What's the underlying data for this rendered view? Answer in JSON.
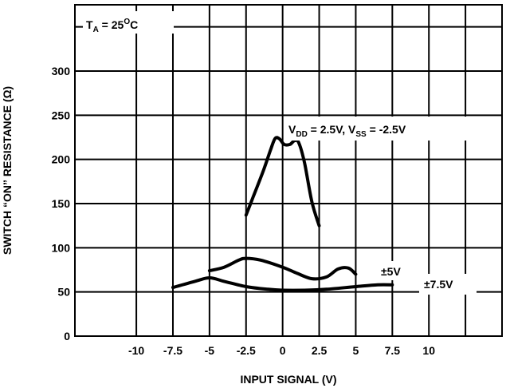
{
  "chart_data": {
    "type": "line",
    "title": "",
    "xlabel": "INPUT SIGNAL (V)",
    "ylabel": "SWITCH “ON” RESISTANCE (Ω)",
    "xlim": [
      -14.2,
      15
    ],
    "ylim": [
      0,
      375
    ],
    "x_ticks": [
      -10,
      -7.5,
      -5,
      -2.5,
      0,
      2.5,
      5,
      7.5,
      10
    ],
    "x_tick_labels": [
      "-10",
      "-7.5",
      "-5",
      "-2.5",
      "0",
      "2.5",
      "5",
      "7.5",
      "10"
    ],
    "y_ticks": [
      0,
      50,
      100,
      150,
      200,
      250,
      300
    ],
    "y_tick_labels": [
      "0",
      "50",
      "100",
      "150",
      "200",
      "250",
      "300"
    ],
    "grid": true,
    "condition": {
      "main": "T",
      "sub": "A",
      "rest": " = 25",
      "sup": "O",
      "tail": "C"
    },
    "series": [
      {
        "label_parts": [
          {
            "t": "V",
            "s": "n"
          },
          {
            "t": "DD",
            "s": "sub"
          },
          {
            "t": " = 2.5V, V",
            "s": "n"
          },
          {
            "t": "SS",
            "s": "sub"
          },
          {
            "t": " = -2.5V",
            "s": "n"
          }
        ],
        "points": [
          [
            -2.5,
            137
          ],
          [
            -2.0,
            158
          ],
          [
            -1.3,
            188
          ],
          [
            -0.8,
            212
          ],
          [
            -0.5,
            224
          ],
          [
            -0.2,
            223
          ],
          [
            0.1,
            217
          ],
          [
            0.5,
            217
          ],
          [
            0.8,
            221
          ],
          [
            1.1,
            219
          ],
          [
            1.5,
            196
          ],
          [
            2.0,
            152
          ],
          [
            2.5,
            125
          ]
        ]
      },
      {
        "label_parts": [
          {
            "t": "±5V",
            "s": "n"
          }
        ],
        "points": [
          [
            -5.0,
            74
          ],
          [
            -4.0,
            78
          ],
          [
            -3.0,
            86
          ],
          [
            -2.5,
            88
          ],
          [
            -1.5,
            86
          ],
          [
            0.0,
            78
          ],
          [
            1.0,
            71
          ],
          [
            2.0,
            65
          ],
          [
            3.0,
            67
          ],
          [
            3.8,
            76
          ],
          [
            4.5,
            77
          ],
          [
            5.0,
            70
          ]
        ]
      },
      {
        "label_parts": [
          {
            "t": "±7.5V",
            "s": "n"
          }
        ],
        "points": [
          [
            -7.5,
            55
          ],
          [
            -6.0,
            62
          ],
          [
            -5.0,
            66
          ],
          [
            -4.0,
            62
          ],
          [
            -2.5,
            56
          ],
          [
            -1.0,
            53
          ],
          [
            0.0,
            52
          ],
          [
            1.5,
            52
          ],
          [
            3.0,
            53
          ],
          [
            5.0,
            56
          ],
          [
            6.5,
            58
          ],
          [
            7.5,
            58
          ]
        ]
      }
    ]
  }
}
